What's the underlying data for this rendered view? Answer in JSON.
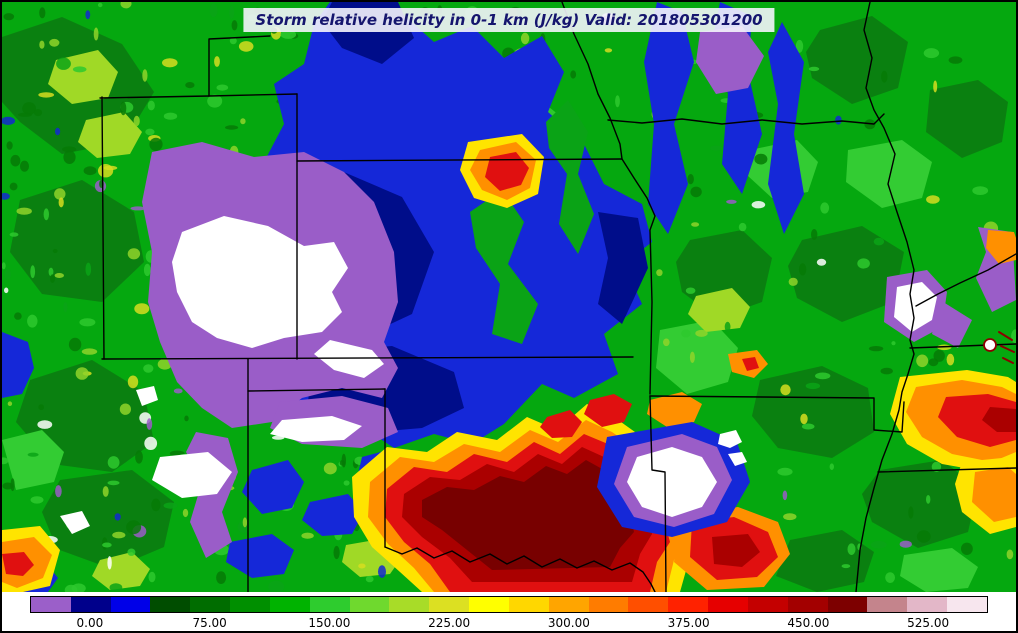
{
  "title": {
    "text": "Storm relative helicity in 0-1 km (J/kg) Valid: 201805301200"
  },
  "colorbar": {
    "tick_labels": [
      "0.00",
      "75.00",
      "150.00",
      "225.00",
      "300.00",
      "375.00",
      "450.00",
      "525.00"
    ],
    "segment_colors": [
      "#9b5fc9",
      "#00008b",
      "#0000e8",
      "#004d00",
      "#006d00",
      "#008f00",
      "#00b300",
      "#2ecc2e",
      "#6fd92e",
      "#a8dc28",
      "#dce022",
      "#ffff00",
      "#ffd700",
      "#ffa500",
      "#ff7c00",
      "#ff4f00",
      "#ff2200",
      "#e60000",
      "#c40000",
      "#a30000",
      "#7d0000",
      "#c4848c",
      "#e3b7c8",
      "#f7e6ee"
    ]
  },
  "chart_data": {
    "type": "heatmap",
    "title": "Storm relative helicity in 0-1 km (J/kg) Valid: 201805301200",
    "units": "J/kg",
    "valid": "201805301200",
    "colorbar_tick_values": [
      0,
      75,
      150,
      225,
      300,
      375,
      450,
      525
    ],
    "colorbar_segment_interval": 25
  }
}
